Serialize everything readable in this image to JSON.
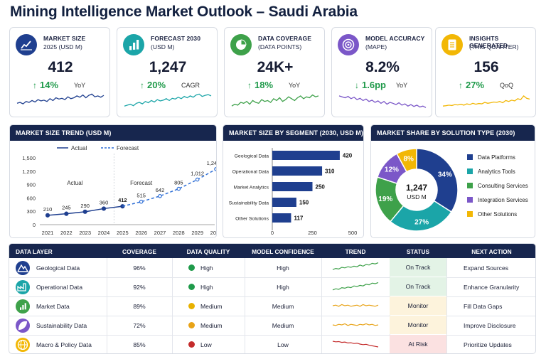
{
  "title": "Mining Intelligence Market Outlook – Saudi Arabia",
  "colors": {
    "navy": "#17264e",
    "blue": "#1f3f8f",
    "teal": "#1ba5a8",
    "green": "#3ea14a",
    "purple": "#7b57c8",
    "yellow": "#f2b705",
    "red": "#c42b2b",
    "orange": "#e8a317"
  },
  "kpis": [
    {
      "icon": "trend-chart-icon",
      "label": "MARKET SIZE",
      "sub": "2025 (USD M)",
      "value": "412",
      "change": "14%",
      "dir": "up",
      "period": "YoY",
      "color": "#1f3f8f",
      "spark": [
        0.45,
        0.5,
        0.42,
        0.55,
        0.5,
        0.6,
        0.52,
        0.65,
        0.58,
        0.62,
        0.55,
        0.7,
        0.6,
        0.75,
        0.68,
        0.72,
        0.65,
        0.8,
        0.7,
        0.75,
        0.85,
        0.78,
        0.9,
        0.75,
        0.88,
        0.95,
        0.8,
        0.85,
        0.78,
        0.88
      ]
    },
    {
      "icon": "bar-chart-icon",
      "label": "FORECAST 2030",
      "sub": "(USD M)",
      "value": "1,247",
      "change": "20%",
      "dir": "up",
      "period": "CAGR",
      "color": "#1ba5a8",
      "spark": [
        0.3,
        0.35,
        0.4,
        0.32,
        0.45,
        0.5,
        0.42,
        0.55,
        0.48,
        0.6,
        0.52,
        0.65,
        0.58,
        0.62,
        0.7,
        0.6,
        0.72,
        0.68,
        0.78,
        0.7,
        0.82,
        0.75,
        0.85,
        0.78,
        0.9,
        0.95,
        0.82,
        0.88,
        0.92,
        0.85
      ]
    },
    {
      "icon": "pie-chart-icon",
      "label": "DATA COVERAGE",
      "sub": "(DATA POINTS)",
      "value": "24K+",
      "change": "18%",
      "dir": "up",
      "period": "YoY",
      "color": "#3ea14a",
      "spark": [
        0.3,
        0.4,
        0.35,
        0.5,
        0.45,
        0.55,
        0.4,
        0.6,
        0.5,
        0.45,
        0.65,
        0.55,
        0.6,
        0.5,
        0.7,
        0.6,
        0.75,
        0.55,
        0.65,
        0.8,
        0.7,
        0.6,
        0.75,
        0.85,
        0.7,
        0.8,
        0.75,
        0.9,
        0.8,
        0.85
      ]
    },
    {
      "icon": "target-icon",
      "label": "MODEL ACCURACY",
      "sub": "(MAPE)",
      "value": "8.2%",
      "change": "1.6pp",
      "dir": "down",
      "period": "YoY",
      "color": "#7b57c8",
      "spark": [
        0.85,
        0.8,
        0.75,
        0.82,
        0.7,
        0.78,
        0.65,
        0.72,
        0.6,
        0.68,
        0.55,
        0.62,
        0.5,
        0.58,
        0.45,
        0.55,
        0.4,
        0.5,
        0.45,
        0.38,
        0.48,
        0.35,
        0.42,
        0.3,
        0.38,
        0.28,
        0.35,
        0.25,
        0.3,
        0.22
      ]
    },
    {
      "icon": "document-icon",
      "label": "INSIGHTS GENERATED",
      "sub": "(THIS QUARTER)",
      "value": "156",
      "change": "27%",
      "dir": "up",
      "period": "QoQ",
      "color": "#f2b705",
      "spark": [
        0.3,
        0.32,
        0.35,
        0.33,
        0.38,
        0.36,
        0.4,
        0.35,
        0.42,
        0.38,
        0.45,
        0.4,
        0.44,
        0.42,
        0.5,
        0.45,
        0.48,
        0.52,
        0.5,
        0.55,
        0.48,
        0.6,
        0.55,
        0.62,
        0.58,
        0.7,
        0.65,
        0.85,
        0.72,
        0.68
      ]
    }
  ],
  "chart_data": [
    {
      "type": "line",
      "panel_title": "MARKET SIZE TREND (USD M)",
      "x": [
        2021,
        2022,
        2023,
        2024,
        2025,
        2026,
        2027,
        2028,
        2029,
        2030
      ],
      "series": [
        {
          "name": "Actual",
          "values": [
            210,
            245,
            290,
            360,
            412,
            null,
            null,
            null,
            null,
            null
          ],
          "color": "#1f3f8f",
          "style": "solid"
        },
        {
          "name": "Forecast",
          "values": [
            null,
            null,
            null,
            null,
            412,
            515,
            642,
            805,
            1012,
            1247
          ],
          "color": "#2f6fd6",
          "style": "dashed"
        }
      ],
      "ylim": [
        0,
        1500
      ],
      "yticks": [
        "1,500",
        "1,200",
        "900",
        "600",
        "300",
        "0"
      ],
      "data_labels": [
        "210",
        "245",
        "290",
        "360",
        "412",
        "515",
        "642",
        "805",
        "1,012",
        "1,247"
      ],
      "region_labels": [
        "Actual",
        "Forecast"
      ],
      "legend": "top"
    },
    {
      "type": "bar",
      "panel_title": "MARKET SIZE BY SEGMENT (2030, USD M)",
      "orientation": "horizontal",
      "categories": [
        "Geological Data",
        "Operational Data",
        "Market Analytics",
        "Sustainability Data",
        "Other Solutions"
      ],
      "values": [
        420,
        310,
        250,
        150,
        117
      ],
      "xlim": [
        0,
        500
      ],
      "xticks": [
        "0",
        "250",
        "500"
      ],
      "color": "#1f3f8f"
    },
    {
      "type": "pie",
      "panel_title": "MARKET SHARE BY SOLUTION TYPE (2030)",
      "donut": true,
      "center_value": "1,247",
      "center_label": "USD M",
      "labels": [
        "Data Platforms",
        "Analytics Tools",
        "Consulting Services",
        "Integration Services",
        "Other Solutions"
      ],
      "values": [
        34,
        27,
        19,
        12,
        8
      ],
      "slice_labels": [
        "34%",
        "27%",
        "19%",
        "12%",
        "8%"
      ],
      "colors": [
        "#1f3f8f",
        "#1ba5a8",
        "#3ea14a",
        "#7b57c8",
        "#f2b705"
      ],
      "legend": "right"
    }
  ],
  "table": {
    "headers": [
      "DATA LAYER",
      "COVERAGE",
      "DATA QUALITY",
      "MODEL CONFIDENCE",
      "TREND",
      "STATUS",
      "NEXT ACTION"
    ],
    "rows": [
      {
        "icon": "mountain-icon",
        "icon_color": "#1f3f8f",
        "layer": "Geological Data",
        "coverage": "96%",
        "quality": "High",
        "quality_color": "#1f9a4a",
        "confidence": "High",
        "trend_color": "#3ea14a",
        "trend": [
          0.3,
          0.4,
          0.35,
          0.5,
          0.45,
          0.55,
          0.5,
          0.6,
          0.55,
          0.7,
          0.6,
          0.75,
          0.7,
          0.85,
          0.8,
          0.9
        ],
        "status": "On Track",
        "status_bg": "#e3f3e6",
        "action": "Expand Sources"
      },
      {
        "icon": "factory-icon",
        "icon_color": "#1ba5a8",
        "layer": "Operational Data",
        "coverage": "92%",
        "quality": "High",
        "quality_color": "#1f9a4a",
        "confidence": "High",
        "trend_color": "#3ea14a",
        "trend": [
          0.2,
          0.3,
          0.25,
          0.4,
          0.35,
          0.45,
          0.4,
          0.55,
          0.5,
          0.6,
          0.55,
          0.7,
          0.65,
          0.8,
          0.75,
          0.85
        ],
        "status": "On Track",
        "status_bg": "#e3f3e6",
        "action": "Enhance Granularity"
      },
      {
        "icon": "bars-icon",
        "icon_color": "#3ea14a",
        "layer": "Market Data",
        "coverage": "89%",
        "quality": "Medium",
        "quality_color": "#e8b100",
        "confidence": "Medium",
        "trend_color": "#e8a317",
        "trend": [
          0.5,
          0.55,
          0.45,
          0.6,
          0.5,
          0.55,
          0.45,
          0.5,
          0.55,
          0.45,
          0.6,
          0.5,
          0.55,
          0.5,
          0.45,
          0.55
        ],
        "status": "Monitor",
        "status_bg": "#fdf3dc",
        "action": "Fill Data Gaps"
      },
      {
        "icon": "leaf-icon",
        "icon_color": "#7b57c8",
        "layer": "Sustainability Data",
        "coverage": "72%",
        "quality": "Medium",
        "quality_color": "#e8a317",
        "confidence": "Medium",
        "trend_color": "#e8a317",
        "trend": [
          0.5,
          0.45,
          0.55,
          0.5,
          0.6,
          0.45,
          0.55,
          0.5,
          0.45,
          0.55,
          0.5,
          0.6,
          0.5,
          0.55,
          0.45,
          0.5
        ],
        "status": "Monitor",
        "status_bg": "#fdf3dc",
        "action": "Improve Disclosure"
      },
      {
        "icon": "globe-icon",
        "icon_color": "#f2b705",
        "layer": "Macro & Policy Data",
        "coverage": "85%",
        "quality": "Low",
        "quality_color": "#c42b2b",
        "confidence": "Low",
        "trend_color": "#c42b2b",
        "trend": [
          0.75,
          0.7,
          0.72,
          0.65,
          0.68,
          0.6,
          0.62,
          0.55,
          0.58,
          0.5,
          0.45,
          0.48,
          0.4,
          0.35,
          0.3,
          0.25
        ],
        "status": "At Risk",
        "status_bg": "#fbe1e1",
        "action": "Prioritize Updates"
      }
    ]
  }
}
